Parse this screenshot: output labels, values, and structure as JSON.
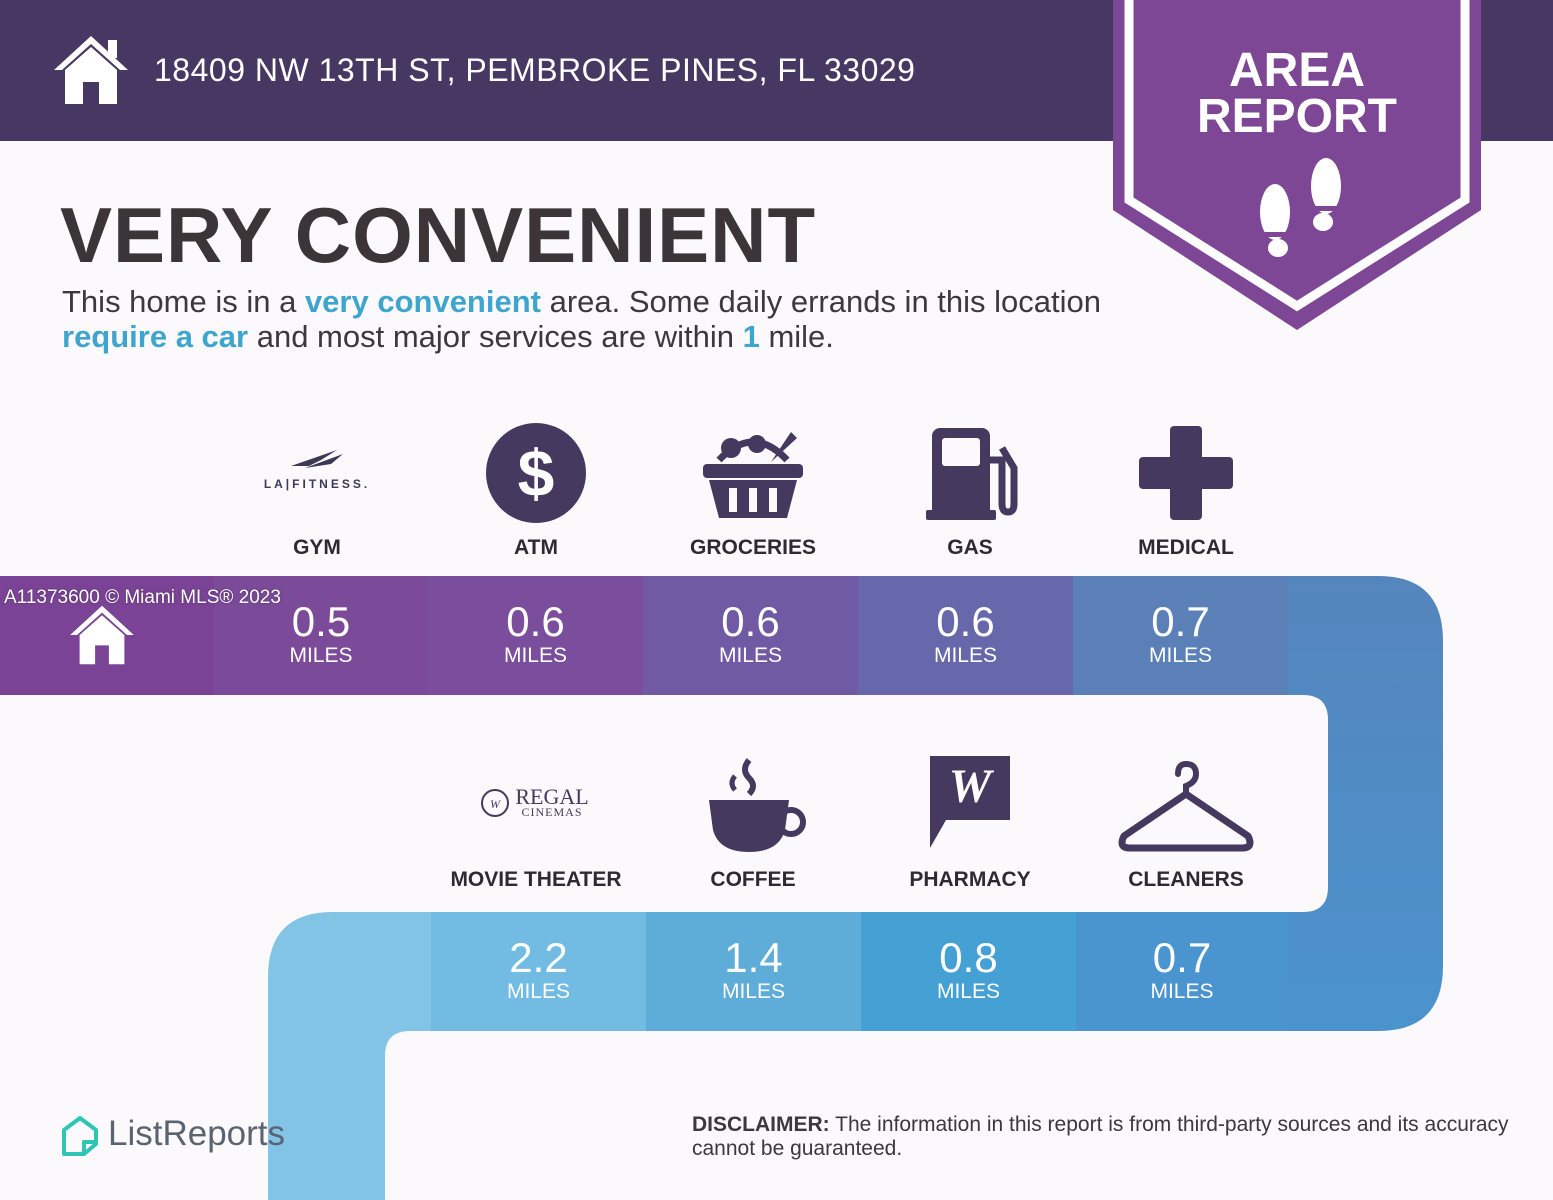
{
  "header": {
    "address": "18409 NW 13TH ST, PEMBROKE PINES, FL 33029",
    "badge_line1": "AREA",
    "badge_line2": "REPORT"
  },
  "headline": "VERY CONVENIENT",
  "summary": {
    "p1": "This home is in a ",
    "h1": "very convenient",
    "p2": " area. Some daily errands in this location ",
    "h2": "require a car",
    "p3": " and most major services are within ",
    "h3": "1",
    "p4": " mile."
  },
  "row1": [
    {
      "label": "GYM",
      "distance": "0.5",
      "unit": "MILES",
      "brand": "LA|FITNESS.",
      "icon": "gym-logo",
      "color": "#7b4a98"
    },
    {
      "label": "ATM",
      "distance": "0.6",
      "unit": "MILES",
      "icon": "dollar-icon",
      "color": "#7a4e9c"
    },
    {
      "label": "GROCERIES",
      "distance": "0.6",
      "unit": "MILES",
      "icon": "basket-icon",
      "color": "#6f5aa3"
    },
    {
      "label": "GAS",
      "distance": "0.6",
      "unit": "MILES",
      "icon": "gas-pump-icon",
      "color": "#6768ac"
    },
    {
      "label": "MEDICAL",
      "distance": "0.7",
      "unit": "MILES",
      "icon": "medical-cross-icon",
      "color": "#5b80b8"
    }
  ],
  "row2": [
    {
      "label": "MOVIE THEATER",
      "distance": "2.2",
      "unit": "MILES",
      "brand_top": "REGAL",
      "brand_bottom": "CINEMAS",
      "icon": "regal-logo",
      "color": "#72bce3"
    },
    {
      "label": "COFFEE",
      "distance": "1.4",
      "unit": "MILES",
      "icon": "coffee-cup-icon",
      "color": "#5eadd9"
    },
    {
      "label": "PHARMACY",
      "distance": "0.8",
      "unit": "MILES",
      "icon": "walgreens-icon",
      "color": "#45a0d3"
    },
    {
      "label": "CLEANERS",
      "distance": "0.7",
      "unit": "MILES",
      "icon": "hanger-icon",
      "color": "#4a95cf"
    }
  ],
  "watermark": "A11373600 © Miami MLS® 2023",
  "brand": "ListReports",
  "disclaimer": {
    "label": "DISCLAIMER:",
    "text": " The information in this report is from third-party sources and its accuracy cannot be guaranteed."
  },
  "colors": {
    "header": "#463862",
    "badge": "#7d4796",
    "highlight": "#3ea5cf",
    "icon": "#46395f"
  }
}
